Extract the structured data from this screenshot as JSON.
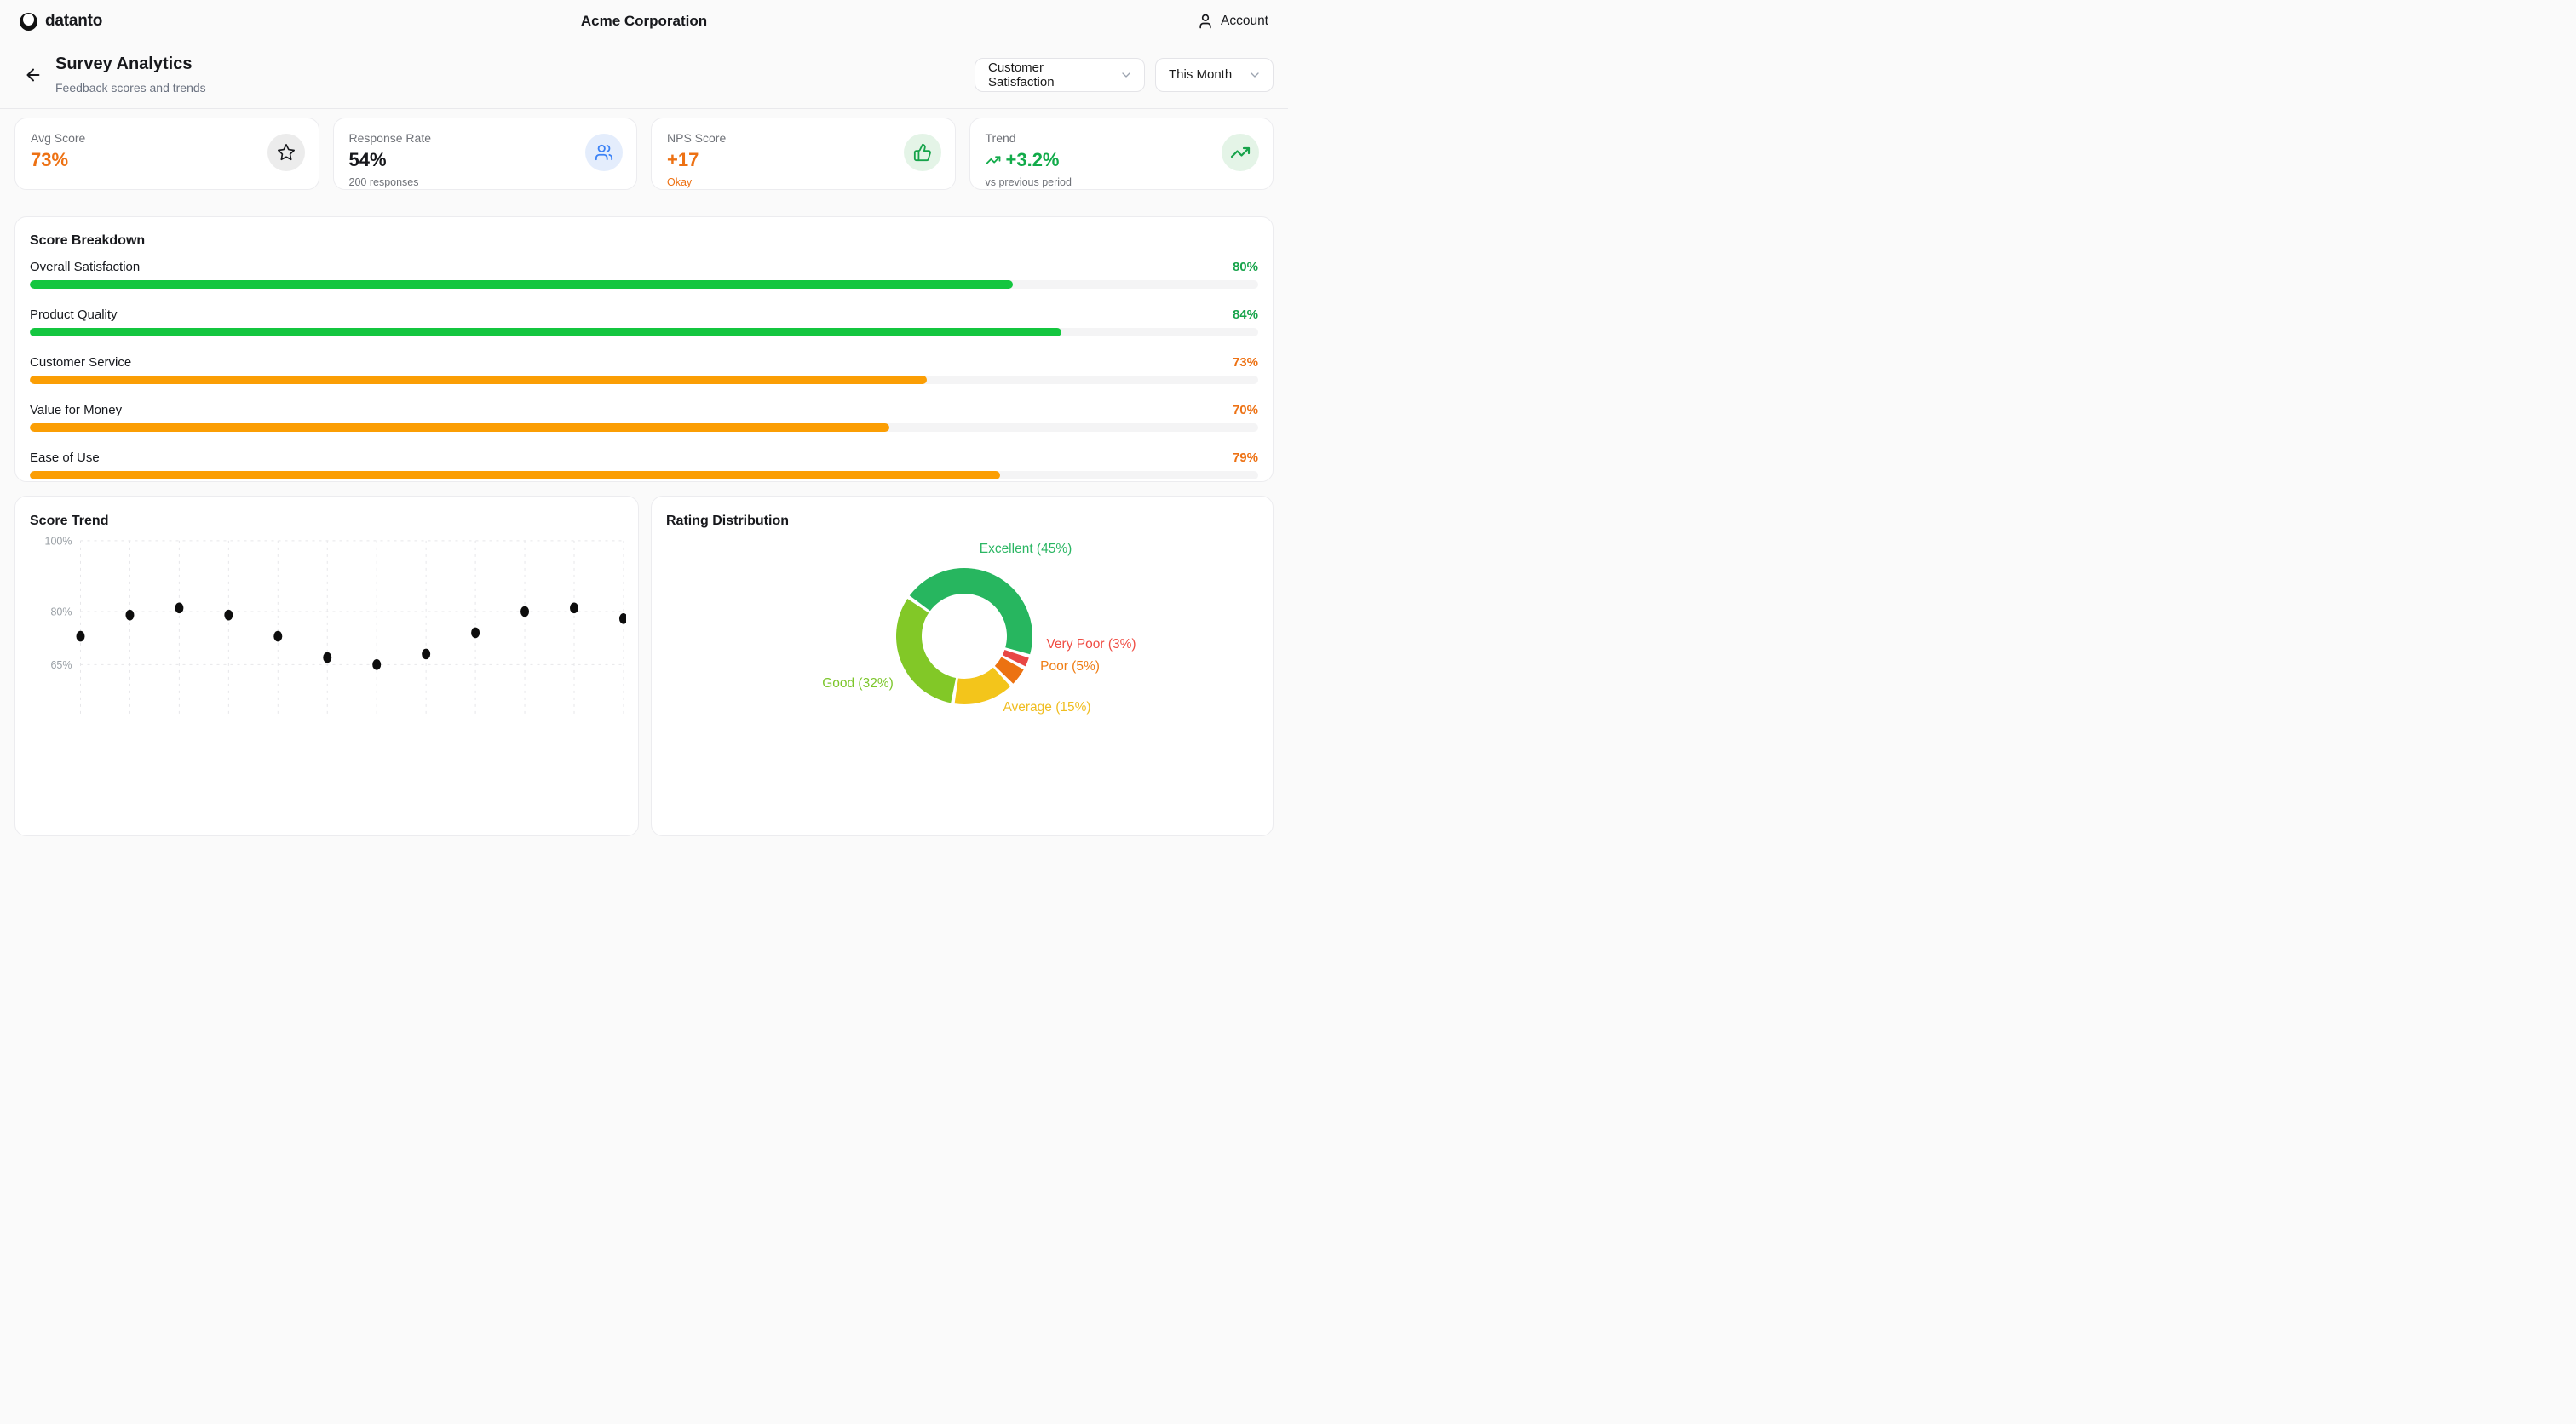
{
  "colors": {
    "accent_orange_text": "#ed7113",
    "accent_green_text": "#16a34a",
    "bar_green": "#14c63f",
    "bar_orange": "#fb9e04",
    "bar_track": "#f4f4f5",
    "icon_blue": "#3b82f6",
    "value_dark": "#17181c"
  },
  "topbar": {
    "brand": "datanto",
    "company": "Acme Corporation",
    "account_label": "Account"
  },
  "header": {
    "title": "Survey Analytics",
    "subtitle": "Feedback scores and trends",
    "metric_filter": "Customer Satisfaction",
    "period_filter": "This Month"
  },
  "stat_cards": [
    {
      "label": "Avg Score",
      "value": "73%",
      "sub": "",
      "icon": "star",
      "value_color": "#ed7113",
      "sub_color": "#6f7278"
    },
    {
      "label": "Response Rate",
      "value": "54%",
      "sub": "200 responses",
      "icon": "users",
      "value_color": "#17181c",
      "sub_color": "#6f7278"
    },
    {
      "label": "NPS Score",
      "value": "+17",
      "sub": "Okay",
      "icon": "thumbs-up",
      "value_color": "#ed7113",
      "sub_color": "#ed7113"
    },
    {
      "label": "Trend",
      "value": "+3.2%",
      "sub": "vs previous period",
      "icon": "trending-up",
      "value_color": "#12ab4a",
      "sub_color": "#6f7278"
    }
  ],
  "sections": {
    "score_breakdown": "Score Breakdown",
    "score_trend": "Score Trend",
    "rating_distribution": "Rating Distribution"
  },
  "chart_data": [
    {
      "type": "bar",
      "title": "Score Breakdown",
      "categories": [
        "Overall Satisfaction",
        "Product Quality",
        "Customer Service",
        "Value for Money",
        "Ease of Use"
      ],
      "values": [
        80,
        84,
        73,
        70,
        79
      ],
      "unit": "%",
      "xlim": [
        0,
        100
      ],
      "bar_colors": [
        "#14c63f",
        "#14c63f",
        "#fb9e04",
        "#fb9e04",
        "#fb9e04"
      ],
      "value_colors": [
        "#16a34a",
        "#16a34a",
        "#ed7113",
        "#ed7113",
        "#ed7113"
      ],
      "track_color": "#f4f4f5"
    },
    {
      "type": "scatter",
      "title": "Score Trend",
      "x_index": [
        1,
        2,
        3,
        4,
        5,
        6,
        7,
        8,
        9,
        10,
        11,
        12
      ],
      "y_percent": [
        73,
        79,
        81,
        79,
        73,
        67,
        65,
        68,
        74,
        80,
        81,
        78
      ],
      "yticks": [
        {
          "value": 100,
          "label": "100%"
        },
        {
          "value": 80,
          "label": "80%"
        },
        {
          "value": 65,
          "label": "65%"
        }
      ],
      "grid": "dashed",
      "grid_color": "#e7e7ea",
      "point_color": "#0d0d0d",
      "x_axis_labels_visible": false
    },
    {
      "type": "pie",
      "donut": true,
      "title": "Rating Distribution",
      "start_angle_deg": -55,
      "direction": "clockwise",
      "slices": [
        {
          "label": "Excellent",
          "value": 45,
          "color": "#27b65f",
          "label_color": "#2bb663"
        },
        {
          "label": "Very Poor",
          "value": 3,
          "color": "#e84744",
          "label_color": "#ef4d44"
        },
        {
          "label": "Poor",
          "value": 5,
          "color": "#ec7211",
          "label_color": "#ef7d14"
        },
        {
          "label": "Average",
          "value": 15,
          "color": "#f3c51b",
          "label_color": "#f0bd20"
        },
        {
          "label": "Good",
          "value": 32,
          "color": "#82c827",
          "label_color": "#7cc62b"
        }
      ]
    }
  ]
}
